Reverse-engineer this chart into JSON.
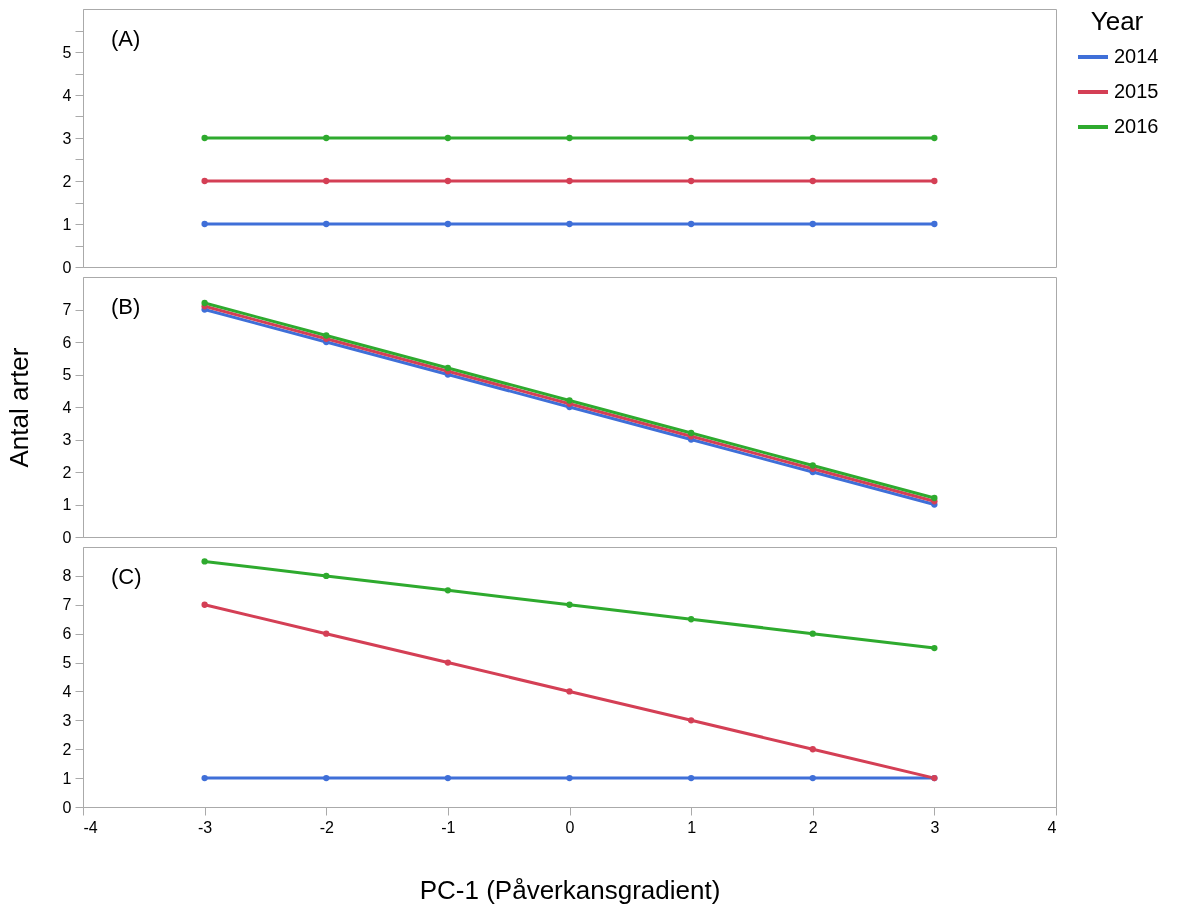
{
  "chart_data": [
    {
      "type": "line",
      "x": [
        -3,
        -2,
        -1,
        0,
        1,
        2,
        3
      ],
      "xlim": [
        -4,
        4
      ],
      "xticks": [
        -4,
        -3,
        -2,
        -1,
        0,
        1,
        2,
        3,
        4
      ],
      "ylim": [
        0,
        6
      ],
      "yticks": [
        0,
        {
          "value": 0.5,
          "label": null
        },
        1,
        {
          "value": 1.5,
          "label": null
        },
        2,
        {
          "value": 2.5,
          "label": null
        },
        3,
        {
          "value": 3.5,
          "label": null
        },
        4,
        {
          "value": 4.5,
          "label": null
        },
        5,
        {
          "value": 5.5,
          "label": null
        }
      ],
      "tick_labels": "y",
      "grid": false,
      "marker": "circle",
      "legend": "top right",
      "legend_title": "Year",
      "annotations": [
        "(A)"
      ],
      "series": [
        {
          "name": "2014",
          "color": "#3f6fd8",
          "values": [
            1,
            1,
            1,
            1,
            1,
            1,
            1
          ]
        },
        {
          "name": "2015",
          "color": "#d43f55",
          "values": [
            2,
            2,
            2,
            2,
            2,
            2,
            2
          ]
        },
        {
          "name": "2016",
          "color": "#2eaa2e",
          "values": [
            3,
            3,
            3,
            3,
            3,
            3,
            3
          ]
        }
      ]
    },
    {
      "type": "line",
      "x": [
        -3,
        -2,
        -1,
        0,
        1,
        2,
        3
      ],
      "xlim": [
        -4,
        4
      ],
      "xticks": [
        -4,
        -3,
        -2,
        -1,
        0,
        1,
        2,
        3,
        4
      ],
      "ylim": [
        0,
        8
      ],
      "yticks": [
        0,
        1,
        2,
        3,
        4,
        5,
        6,
        7
      ],
      "tick_labels": "y",
      "grid": false,
      "marker": "circle",
      "ylabel": "Antal arter",
      "annotations": [
        "(B)"
      ],
      "series": [
        {
          "name": "2014",
          "color": "#3f6fd8",
          "values": [
            7,
            6,
            5,
            4,
            3,
            2,
            1
          ]
        },
        {
          "name": "2015",
          "color": "#d43f55",
          "values": [
            7.1,
            6.1,
            5.1,
            4.1,
            3.1,
            2.1,
            1.1
          ]
        },
        {
          "name": "2016",
          "color": "#2eaa2e",
          "values": [
            7.2,
            6.2,
            5.2,
            4.2,
            3.2,
            2.2,
            1.2
          ]
        }
      ]
    },
    {
      "type": "line",
      "x": [
        -3,
        -2,
        -1,
        0,
        1,
        2,
        3
      ],
      "xlim": [
        -4,
        4
      ],
      "xticks": [
        -4,
        -3,
        -2,
        -1,
        0,
        1,
        2,
        3,
        4
      ],
      "ylim": [
        0,
        9
      ],
      "yticks": [
        0,
        1,
        2,
        3,
        4,
        5,
        6,
        7,
        8
      ],
      "grid": false,
      "marker": "circle",
      "xlabel": "PC-1 (Påverkansgradient)",
      "annotations": [
        "(C)"
      ],
      "series": [
        {
          "name": "2014",
          "color": "#3f6fd8",
          "values": [
            1,
            1,
            1,
            1,
            1,
            1,
            1
          ]
        },
        {
          "name": "2015",
          "color": "#d43f55",
          "values": [
            7,
            6,
            5,
            4,
            3,
            2,
            1
          ]
        },
        {
          "name": "2016",
          "color": "#2eaa2e",
          "values": [
            8.5,
            8,
            7.5,
            7,
            6.5,
            6,
            5.5
          ]
        }
      ]
    }
  ]
}
